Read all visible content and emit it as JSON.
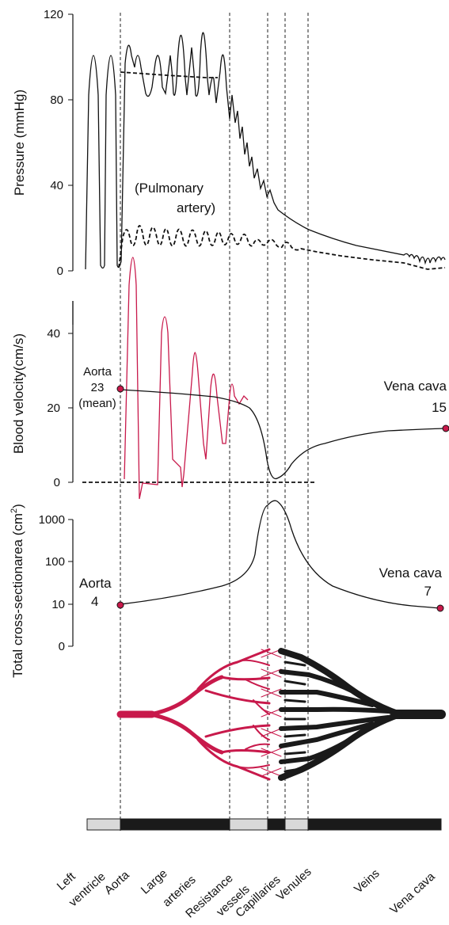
{
  "colors": {
    "ink": "#1a1a1a",
    "accent": "#c8194b",
    "bar_light": "#d9d9d9"
  },
  "segments": [
    "Left ventricle",
    "Aorta",
    "Large arteries",
    "Resistance vessels",
    "Capillaries",
    "Venules",
    "Veins",
    "Vena cava"
  ],
  "chart_data": [
    {
      "type": "line",
      "ylabel": "Pressure (mmHg)",
      "ylim": [
        0,
        120
      ],
      "yticks": [
        "0",
        "40",
        "80",
        "120"
      ],
      "series": [
        {
          "name": "",
          "values": [
            [
              0.0,
              0
            ],
            [
              0.1,
              113
            ],
            [
              0.2,
              0
            ],
            [
              0.3,
              113
            ],
            [
              0.4,
              0
            ],
            [
              1.0,
              110
            ],
            [
              1.5,
              105
            ],
            [
              2.0,
              118
            ],
            [
              2.5,
              100
            ],
            [
              3.0,
              123
            ],
            [
              3.5,
              90
            ],
            [
              4.0,
              95
            ],
            [
              4.5,
              58
            ],
            [
              5.0,
              40
            ],
            [
              5.5,
              25
            ],
            [
              6.0,
              20
            ],
            [
              7.0,
              10
            ],
            [
              8.0,
              7
            ],
            [
              9.0,
              6
            ]
          ]
        },
        {
          "name": "",
          "values": [
            [
              1.0,
              92
            ],
            [
              2.0,
              91
            ],
            [
              3.0,
              90
            ],
            [
              3.5,
              90
            ]
          ]
        },
        {
          "name": "",
          "values": [
            [
              1.0,
              5
            ],
            [
              1.5,
              25
            ],
            [
              2.5,
              20
            ],
            [
              3.5,
              18
            ],
            [
              4.5,
              20
            ],
            [
              5.5,
              13
            ],
            [
              6.0,
              8
            ],
            [
              7.0,
              5
            ],
            [
              8.0,
              3
            ],
            [
              9.0,
              1
            ]
          ]
        }
      ],
      "annotations": [
        "(Pulmonary",
        "artery)"
      ]
    },
    {
      "type": "line",
      "ylabel": "Blood velocity(cm/s)",
      "ylim": [
        0,
        45
      ],
      "yticks": [
        "0",
        "20",
        "40"
      ],
      "series": [
        {
          "name": "",
          "values": [
            [
              1.0,
              25
            ],
            [
              2.0,
              24
            ],
            [
              3.0,
              23
            ],
            [
              3.5,
              22
            ],
            [
              4.0,
              21
            ],
            [
              4.5,
              14
            ],
            [
              5.0,
              1
            ],
            [
              5.5,
              5
            ],
            [
              6.0,
              10
            ],
            [
              7.0,
              13
            ],
            [
              8.0,
              14
            ],
            [
              9.0,
              15
            ]
          ]
        },
        {
          "name": "",
          "values": [
            [
              1.0,
              0
            ],
            [
              1.15,
              48
            ],
            [
              1.35,
              -4
            ],
            [
              2.1,
              43
            ],
            [
              2.6,
              38
            ],
            [
              3.1,
              32
            ],
            [
              3.5,
              25
            ],
            [
              3.9,
              22
            ]
          ]
        }
      ],
      "annotations": {
        "aorta": [
          "Aorta",
          "23",
          "(mean)"
        ],
        "vena_cava": [
          "Vena cava",
          "15"
        ]
      }
    },
    {
      "type": "line",
      "ylabel_main": "Total  cross-sectionarea  (cm",
      "ylabel_sup": "2",
      "ylabel_end": ")",
      "yticks": [
        "0",
        "10",
        "100",
        "1000"
      ],
      "series": [
        {
          "name": "",
          "values": [
            [
              1.0,
              4
            ],
            [
              2.0,
              5
            ],
            [
              3.0,
              7
            ],
            [
              4.0,
              15
            ],
            [
              4.5,
              100
            ],
            [
              5.0,
              3000
            ],
            [
              5.5,
              1000
            ],
            [
              6.0,
              100
            ],
            [
              7.0,
              20
            ],
            [
              8.0,
              10
            ],
            [
              9.0,
              7
            ]
          ]
        }
      ],
      "annotations": {
        "aorta": [
          "Aorta",
          "4"
        ],
        "vena_cava": [
          "Vena cava",
          "7"
        ]
      }
    }
  ]
}
